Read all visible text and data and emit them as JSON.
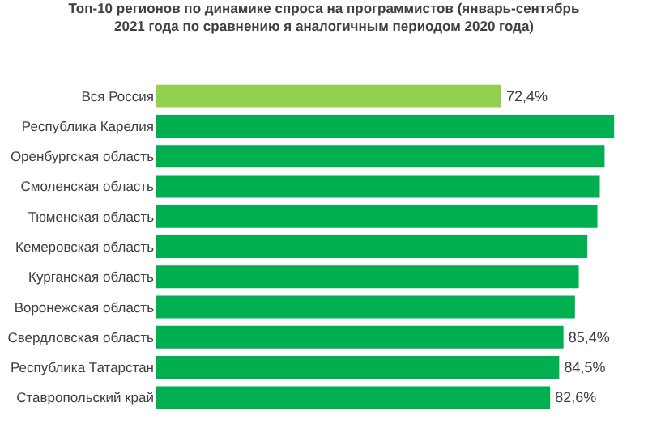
{
  "chart_data": {
    "type": "bar",
    "orientation": "horizontal",
    "title": "Топ-10 регионов по динамике спроса на программистов (январь-сентябрь\n2021 года по сравнению я аналогичным периодом 2020 года)",
    "categories": [
      "Вся Россия",
      "Республика Карелия",
      "Оренбургская область",
      "Смоленская область",
      "Тюменская область",
      "Кемеровская область",
      "Курганская область",
      "Воронежская область",
      "Свердловская область",
      "Республика Татарстан",
      "Ставропольский край"
    ],
    "values": [
      72.4,
      96,
      94,
      93,
      92.5,
      90.4,
      88.6,
      87.8,
      85.4,
      84.5,
      82.6
    ],
    "colors": [
      "#92d050",
      "#00b050",
      "#00b050",
      "#00b050",
      "#00b050",
      "#00b050",
      "#00b050",
      "#00b050",
      "#00b050",
      "#00b050",
      "#00b050"
    ],
    "value_labels": [
      "72,4%",
      null,
      null,
      null,
      null,
      null,
      null,
      null,
      "85,4%",
      "84,5%",
      "82,6%"
    ],
    "grid": false,
    "legend": false
  }
}
